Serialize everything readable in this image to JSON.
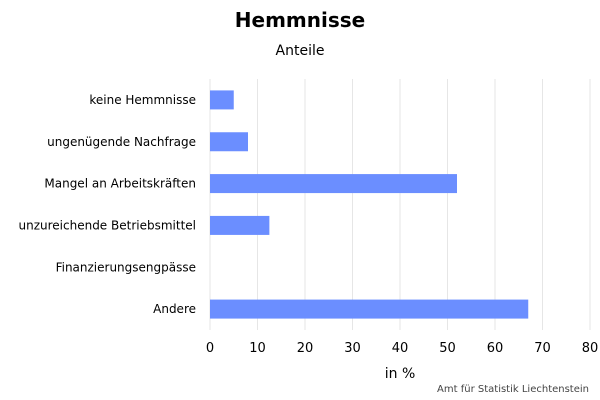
{
  "chart_data": {
    "type": "bar",
    "orientation": "horizontal",
    "title": "Hemmnisse",
    "subtitle": "Anteile",
    "xlabel": "in %",
    "ylabel": "",
    "categories": [
      "keine Hemmnisse",
      "ungenügende Nachfrage",
      "Mangel an Arbeitskräften",
      "unzureichende Betriebsmittel",
      "Finanzierungsengpässe",
      "Andere"
    ],
    "values": [
      5,
      8,
      52,
      12.5,
      0,
      67
    ],
    "xlim": [
      0,
      80
    ],
    "xticks": [
      0,
      10,
      20,
      30,
      40,
      50,
      60,
      70,
      80
    ],
    "grid": true,
    "bar_color": "#6b8eff",
    "grid_color": "#e6e6e6",
    "credits": "Amt für Statistik Liechtenstein"
  }
}
